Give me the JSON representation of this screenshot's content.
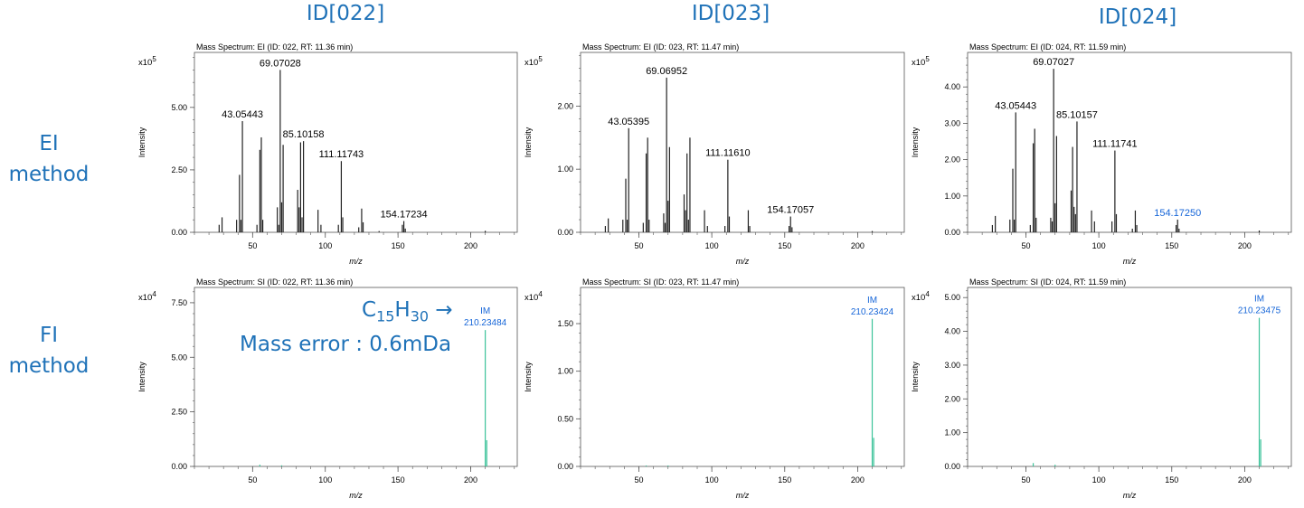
{
  "columns": [
    {
      "title": "ID[022]"
    },
    {
      "title": "ID[023]"
    },
    {
      "title": "ID[024]"
    }
  ],
  "rows": [
    {
      "label_line1": "EI",
      "label_line2": "method"
    },
    {
      "label_line1": "FI",
      "label_line2": "method"
    }
  ],
  "annotation": {
    "formula_c": "C",
    "formula_c_sub": "15",
    "formula_h": "H",
    "formula_h_sub": "30",
    "arrow": "→",
    "mass_error": "Mass error : 0.6mDa"
  },
  "colors": {
    "title_blue": "#1f72b8",
    "ei_peaks": "#222222",
    "fi_peaks": "#3cc39a",
    "blue_label": "#1565d8"
  },
  "chart_data": [
    {
      "panel": "ei-022",
      "type": "bar",
      "title": "Mass Spectrum: EI (ID: 022, RT: 11.36 min)",
      "xlabel": "m/z",
      "ylabel": "Intensity",
      "exponent_base": "x10",
      "exponent_power": "5",
      "xlim": [
        10,
        232
      ],
      "ylim": [
        0,
        7.2
      ],
      "xticks": [
        50,
        100,
        150,
        200
      ],
      "yticks": [
        0,
        2.5,
        5.0
      ],
      "peak_color": "#222222",
      "peaks": [
        [
          27,
          0.3
        ],
        [
          29,
          0.6
        ],
        [
          39,
          0.5
        ],
        [
          41,
          2.3
        ],
        [
          42,
          0.5
        ],
        [
          43,
          4.45
        ],
        [
          53,
          0.3
        ],
        [
          55,
          3.3
        ],
        [
          56,
          3.8
        ],
        [
          57,
          0.5
        ],
        [
          67,
          1.0
        ],
        [
          68,
          0.3
        ],
        [
          69,
          6.5
        ],
        [
          70,
          1.2
        ],
        [
          71,
          3.5
        ],
        [
          81,
          1.7
        ],
        [
          82,
          1.0
        ],
        [
          83,
          3.6
        ],
        [
          84,
          0.6
        ],
        [
          85,
          3.65
        ],
        [
          95,
          0.9
        ],
        [
          97,
          0.3
        ],
        [
          109,
          0.3
        ],
        [
          111,
          2.85
        ],
        [
          112,
          0.6
        ],
        [
          123,
          0.2
        ],
        [
          125,
          0.95
        ],
        [
          126,
          0.4
        ],
        [
          137,
          0.05
        ],
        [
          153,
          0.3
        ],
        [
          154,
          0.45
        ],
        [
          155,
          0.15
        ],
        [
          210,
          0.06
        ]
      ],
      "labels": [
        {
          "x": 43,
          "y": 4.45,
          "text": "43.05443",
          "color": "#000000"
        },
        {
          "x": 69,
          "y": 6.5,
          "text": "69.07028",
          "color": "#000000"
        },
        {
          "x": 85,
          "y": 3.65,
          "text": "85.10158",
          "color": "#000000"
        },
        {
          "x": 111,
          "y": 2.85,
          "text": "111.11743",
          "color": "#000000"
        },
        {
          "x": 154,
          "y": 0.45,
          "text": "154.17234",
          "color": "#000000"
        }
      ]
    },
    {
      "panel": "ei-023",
      "type": "bar",
      "title": "Mass Spectrum: EI (ID: 023, RT: 11.47 min)",
      "xlabel": "m/z",
      "ylabel": "Intensity",
      "exponent_base": "x10",
      "exponent_power": "5",
      "xlim": [
        10,
        232
      ],
      "ylim": [
        0,
        2.85
      ],
      "xticks": [
        50,
        100,
        150,
        200
      ],
      "yticks": [
        0,
        1.0,
        2.0
      ],
      "peak_color": "#222222",
      "peaks": [
        [
          27,
          0.1
        ],
        [
          29,
          0.22
        ],
        [
          39,
          0.2
        ],
        [
          41,
          0.85
        ],
        [
          42,
          0.2
        ],
        [
          43,
          1.65
        ],
        [
          53,
          0.15
        ],
        [
          55,
          1.25
        ],
        [
          56,
          1.5
        ],
        [
          57,
          0.2
        ],
        [
          67,
          0.3
        ],
        [
          68,
          0.15
        ],
        [
          69,
          2.45
        ],
        [
          70,
          0.5
        ],
        [
          71,
          1.35
        ],
        [
          81,
          0.6
        ],
        [
          82,
          0.35
        ],
        [
          83,
          1.25
        ],
        [
          84,
          0.2
        ],
        [
          85,
          1.5
        ],
        [
          95,
          0.35
        ],
        [
          97,
          0.1
        ],
        [
          109,
          0.1
        ],
        [
          111,
          1.15
        ],
        [
          112,
          0.25
        ],
        [
          125,
          0.35
        ],
        [
          126,
          0.1
        ],
        [
          153,
          0.1
        ],
        [
          154,
          0.25
        ],
        [
          155,
          0.08
        ],
        [
          210,
          0.02
        ]
      ],
      "labels": [
        {
          "x": 43,
          "y": 1.65,
          "text": "43.05395",
          "color": "#000000"
        },
        {
          "x": 69,
          "y": 2.45,
          "text": "69.06952",
          "color": "#000000"
        },
        {
          "x": 111,
          "y": 1.15,
          "text": "111.11610",
          "color": "#000000"
        },
        {
          "x": 154,
          "y": 0.25,
          "text": "154.17057",
          "color": "#000000"
        }
      ]
    },
    {
      "panel": "ei-024",
      "type": "bar",
      "title": "Mass Spectrum: EI (ID: 024, RT: 11.59 min)",
      "xlabel": "m/z",
      "ylabel": "Intensity",
      "exponent_base": "x10",
      "exponent_power": "5",
      "xlim": [
        10,
        232
      ],
      "ylim": [
        0,
        4.95
      ],
      "xticks": [
        50,
        100,
        150,
        200
      ],
      "yticks": [
        0,
        1.0,
        2.0,
        3.0,
        4.0
      ],
      "peak_color": "#222222",
      "peaks": [
        [
          27,
          0.2
        ],
        [
          29,
          0.45
        ],
        [
          39,
          0.35
        ],
        [
          41,
          1.75
        ],
        [
          42,
          0.35
        ],
        [
          43,
          3.3
        ],
        [
          53,
          0.2
        ],
        [
          55,
          2.45
        ],
        [
          56,
          2.85
        ],
        [
          57,
          0.4
        ],
        [
          67,
          0.4
        ],
        [
          68,
          0.3
        ],
        [
          69,
          4.5
        ],
        [
          70,
          0.8
        ],
        [
          71,
          2.65
        ],
        [
          81,
          1.15
        ],
        [
          82,
          2.35
        ],
        [
          83,
          0.7
        ],
        [
          84,
          0.5
        ],
        [
          85,
          3.05
        ],
        [
          95,
          0.6
        ],
        [
          97,
          0.3
        ],
        [
          109,
          0.3
        ],
        [
          111,
          2.25
        ],
        [
          112,
          0.5
        ],
        [
          123,
          0.1
        ],
        [
          125,
          0.6
        ],
        [
          126,
          0.2
        ],
        [
          153,
          0.2
        ],
        [
          154,
          0.35
        ],
        [
          155,
          0.1
        ],
        [
          210,
          0.05
        ]
      ],
      "labels": [
        {
          "x": 43,
          "y": 3.3,
          "text": "43.05443",
          "color": "#000000"
        },
        {
          "x": 69,
          "y": 4.5,
          "text": "69.07027",
          "color": "#000000"
        },
        {
          "x": 85,
          "y": 3.05,
          "text": "85.10157",
          "color": "#000000"
        },
        {
          "x": 111,
          "y": 2.25,
          "text": "111.11741",
          "color": "#000000"
        },
        {
          "x": 154,
          "y": 0.35,
          "text": "154.17250",
          "color": "#1565d8"
        }
      ]
    },
    {
      "panel": "fi-022",
      "type": "bar",
      "title": "Mass Spectrum: SI (ID: 022, RT: 11.36 min)",
      "xlabel": "m/z",
      "ylabel": "Intensity",
      "exponent_base": "x10",
      "exponent_power": "4",
      "xlim": [
        10,
        232
      ],
      "ylim": [
        0,
        8.2
      ],
      "xticks": [
        50,
        100,
        150,
        200
      ],
      "yticks": [
        0,
        2.5,
        5.0,
        7.5
      ],
      "peak_color": "#3cc39a",
      "peaks": [
        [
          55,
          0.08
        ],
        [
          70,
          0.05
        ],
        [
          210,
          6.25
        ],
        [
          211,
          1.2
        ]
      ],
      "labels": [
        {
          "x": 210,
          "y": 6.25,
          "text": "IM",
          "text2": "210.23484",
          "color": "#1565d8"
        }
      ]
    },
    {
      "panel": "fi-023",
      "type": "bar",
      "title": "Mass Spectrum: SI (ID: 023, RT: 11.47 min)",
      "xlabel": "m/z",
      "ylabel": "Intensity",
      "exponent_base": "x10",
      "exponent_power": "4",
      "xlim": [
        10,
        232
      ],
      "ylim": [
        0,
        1.88
      ],
      "xticks": [
        50,
        100,
        150,
        200
      ],
      "yticks": [
        0,
        0.5,
        1.0,
        1.5
      ],
      "peak_color": "#3cc39a",
      "peaks": [
        [
          55,
          0.01
        ],
        [
          70,
          0.01
        ],
        [
          210,
          1.55
        ],
        [
          211,
          0.3
        ]
      ],
      "labels": [
        {
          "x": 210,
          "y": 1.55,
          "text": "IM",
          "text2": "210.23424",
          "color": "#1565d8"
        }
      ]
    },
    {
      "panel": "fi-024",
      "type": "bar",
      "title": "Mass Spectrum: SI (ID: 024, RT: 11.59 min)",
      "xlabel": "m/z",
      "ylabel": "Intensity",
      "exponent_base": "x10",
      "exponent_power": "4",
      "xlim": [
        10,
        232
      ],
      "ylim": [
        0,
        5.3
      ],
      "xticks": [
        50,
        100,
        150,
        200
      ],
      "yticks": [
        0,
        1.0,
        2.0,
        3.0,
        4.0,
        5.0
      ],
      "peak_color": "#3cc39a",
      "peaks": [
        [
          55,
          0.1
        ],
        [
          70,
          0.05
        ],
        [
          210,
          4.4
        ],
        [
          211,
          0.8
        ]
      ],
      "labels": [
        {
          "x": 210,
          "y": 4.4,
          "text": "IM",
          "text2": "210.23475",
          "color": "#1565d8"
        }
      ]
    }
  ]
}
